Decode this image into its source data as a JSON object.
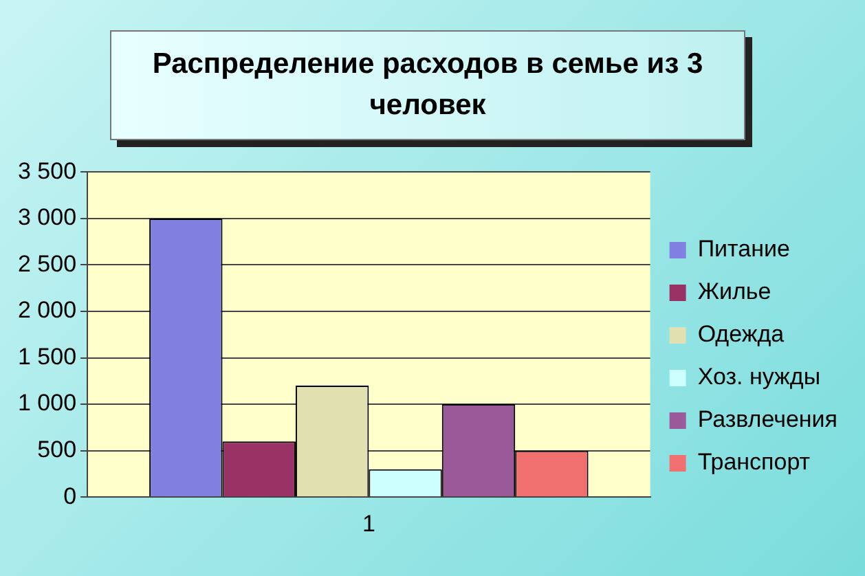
{
  "chart_data": {
    "type": "bar",
    "title": "Распределение расходов в семье из 3 человек",
    "categories": [
      "1"
    ],
    "series": [
      {
        "name": "Питание",
        "color": "#8080e0",
        "values": [
          3000
        ]
      },
      {
        "name": "Жилье",
        "color": "#993366",
        "values": [
          600
        ]
      },
      {
        "name": "Одежда",
        "color": "#e0e0b0",
        "values": [
          1200
        ]
      },
      {
        "name": "Хоз. нужды",
        "color": "#ccffff",
        "values": [
          300
        ]
      },
      {
        "name": "Развлечения",
        "color": "#9a5a9a",
        "values": [
          1000
        ]
      },
      {
        "name": "Транспорт",
        "color": "#f07070",
        "values": [
          500
        ]
      }
    ],
    "ylim": [
      0,
      3500
    ],
    "yticks": [
      0,
      500,
      {
        "value": 1000,
        "label": "1 000"
      },
      {
        "value": 1500,
        "label": "1 500"
      },
      {
        "value": 2000,
        "label": "2 000"
      },
      {
        "value": 2500,
        "label": "2 500"
      },
      {
        "value": 3000,
        "label": "3 000"
      },
      {
        "value": 3500,
        "label": "3 500"
      }
    ],
    "grid": "y",
    "legend": "right"
  }
}
